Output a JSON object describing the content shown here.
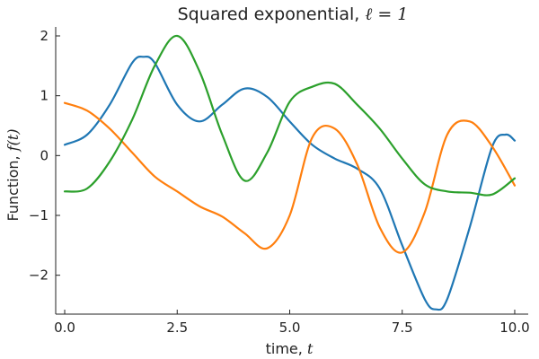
{
  "chart_data": {
    "type": "line",
    "title": {
      "text": "Squared exponential, ",
      "math": "ℓ = 1"
    },
    "xlabel": {
      "text": "time, ",
      "math": "t"
    },
    "ylabel": {
      "text": "Function, ",
      "math": "f(t)"
    },
    "xlim": [
      -0.2,
      10.3
    ],
    "ylim": [
      -2.65,
      2.15
    ],
    "xticks": [
      {
        "value": 0,
        "label": "0.0"
      },
      {
        "value": 2.5,
        "label": "2.5"
      },
      {
        "value": 5,
        "label": "5.0"
      },
      {
        "value": 7.5,
        "label": "7.5"
      },
      {
        "value": 10,
        "label": "10.0"
      }
    ],
    "yticks": [
      {
        "value": -2,
        "label": "−2"
      },
      {
        "value": -1,
        "label": "−1"
      },
      {
        "value": 0,
        "label": "0"
      },
      {
        "value": 1,
        "label": "1"
      },
      {
        "value": 2,
        "label": "2"
      }
    ],
    "grid": false,
    "legend": "none",
    "series": [
      {
        "color": "#1f77b4",
        "x": [
          0,
          0.5,
          1.0,
          1.5,
          1.75,
          2.0,
          2.5,
          3.0,
          3.5,
          4.0,
          4.5,
          5.0,
          5.5,
          6.0,
          6.5,
          7.0,
          7.5,
          8.0,
          8.25,
          8.5,
          9.0,
          9.5,
          9.8,
          10.0
        ],
        "y": [
          0.18,
          0.35,
          0.85,
          1.55,
          1.65,
          1.55,
          0.85,
          0.57,
          0.85,
          1.12,
          0.98,
          0.57,
          0.18,
          -0.05,
          -0.22,
          -0.55,
          -1.5,
          -2.4,
          -2.57,
          -2.4,
          -1.2,
          0.15,
          0.35,
          0.25
        ]
      },
      {
        "color": "#ff7f0e",
        "x": [
          0,
          0.5,
          1.0,
          1.5,
          2.0,
          2.5,
          3.0,
          3.5,
          4.0,
          4.5,
          5.0,
          5.5,
          6.0,
          6.5,
          7.0,
          7.5,
          8.0,
          8.5,
          9.0,
          9.5,
          10.0
        ],
        "y": [
          0.88,
          0.75,
          0.45,
          0.05,
          -0.35,
          -0.6,
          -0.85,
          -1.02,
          -1.3,
          -1.55,
          -1.0,
          0.3,
          0.45,
          -0.15,
          -1.2,
          -1.62,
          -0.95,
          0.35,
          0.57,
          0.15,
          -0.5
        ]
      },
      {
        "color": "#2ca02c",
        "x": [
          0,
          0.5,
          1.0,
          1.5,
          2.0,
          2.5,
          3.0,
          3.5,
          4.0,
          4.5,
          5.0,
          5.5,
          6.0,
          6.5,
          7.0,
          7.5,
          8.0,
          8.5,
          9.0,
          9.5,
          10.0
        ],
        "y": [
          -0.6,
          -0.55,
          -0.1,
          0.6,
          1.5,
          2.0,
          1.4,
          0.35,
          -0.42,
          0.05,
          0.9,
          1.15,
          1.2,
          0.85,
          0.45,
          -0.05,
          -0.48,
          -0.6,
          -0.62,
          -0.65,
          -0.38
        ]
      }
    ]
  }
}
